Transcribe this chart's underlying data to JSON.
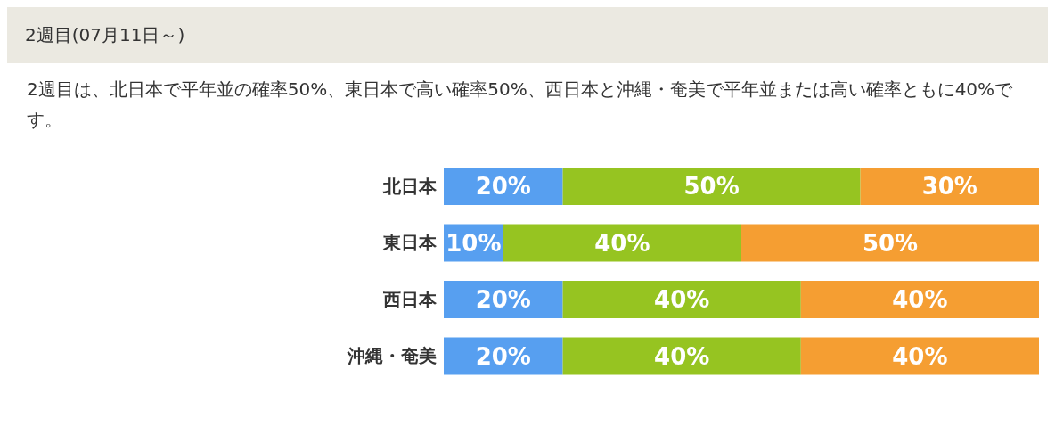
{
  "chart_data": {
    "type": "bar",
    "orientation": "horizontal",
    "stacked": true,
    "title": "2週目(07月11日～)",
    "subtitle": "2週目は、北日本で平年並の確率50%、東日本で高い確率50%、西日本と沖縄・奄美で平年並または高い確率ともに40%です。",
    "categories": [
      "北日本",
      "東日本",
      "西日本",
      "沖縄・奄美"
    ],
    "series": [
      {
        "color": "#579ff0",
        "values": [
          20,
          10,
          20,
          20
        ],
        "value_labels": [
          "20%",
          "10%",
          "20%",
          "20%"
        ]
      },
      {
        "color": "#96c421",
        "values": [
          50,
          40,
          40,
          40
        ],
        "value_labels": [
          "50%",
          "40%",
          "40%",
          "40%"
        ]
      },
      {
        "color": "#f59e32",
        "values": [
          30,
          50,
          40,
          40
        ],
        "value_labels": [
          "30%",
          "50%",
          "40%",
          "40%"
        ]
      }
    ],
    "tick_labels": "y",
    "grid": false,
    "legend": false
  }
}
